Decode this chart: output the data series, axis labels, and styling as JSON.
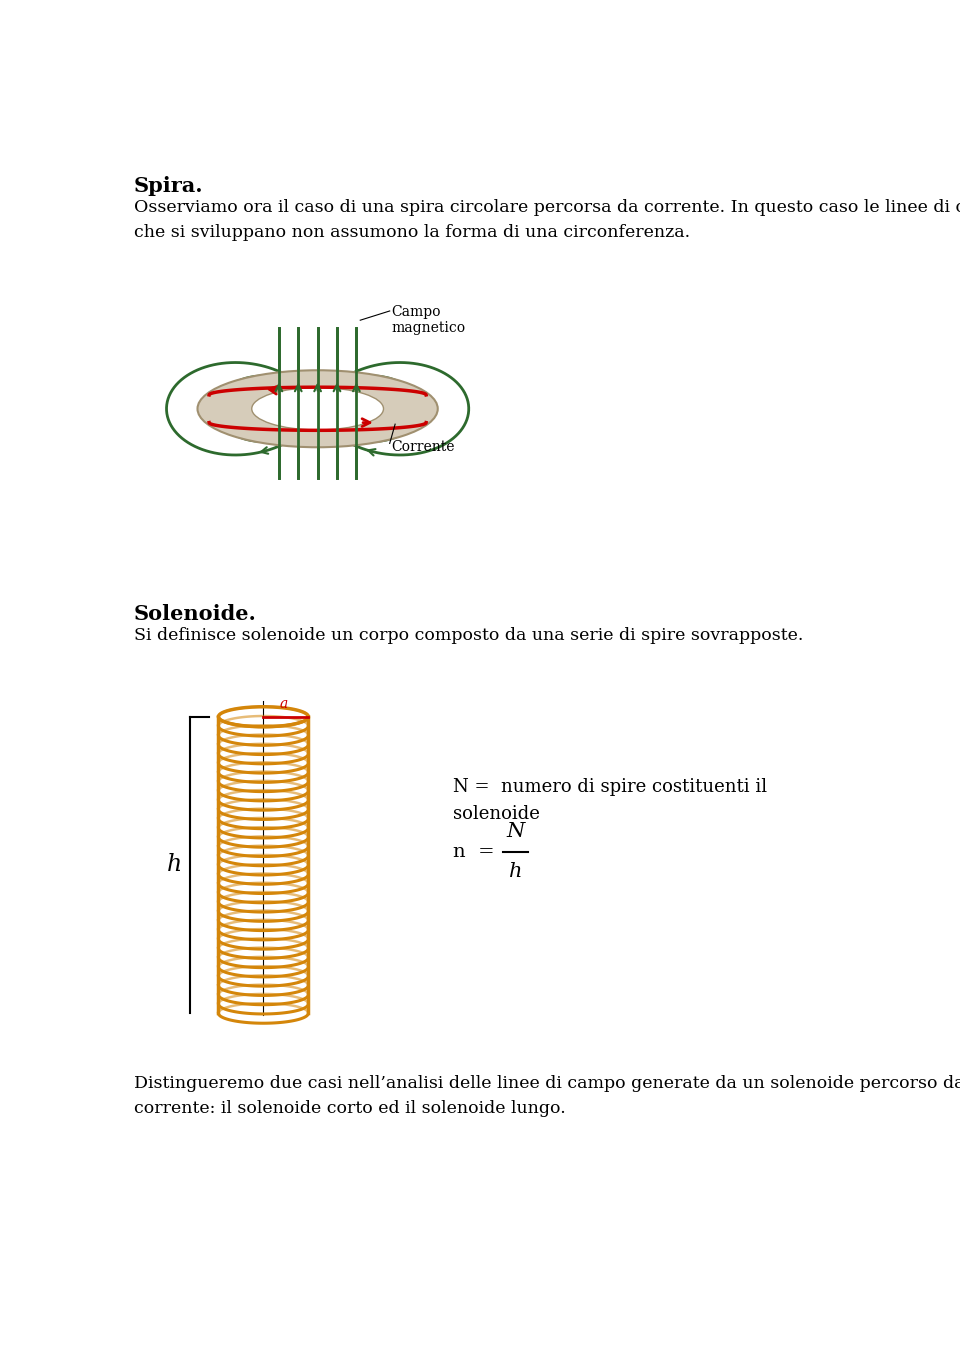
{
  "title1": "Spira.",
  "para1": "Osserviamo ora il caso di una spira circolare percorsa da corrente. In questo caso le linee di campo\nche si sviluppano non assumono la forma di una circonferenza.",
  "title2": "Solenoide.",
  "para2": "Si definisce solenoide un corpo composto da una serie di spire sovrapposte.",
  "para3": "Distingueremo due casi nell’analisi delle linee di campo generate da un solenoide percorso da\ncorrente: il solenoide corto ed il solenoide lungo.",
  "label_campo": "Campo\nmagnetico",
  "label_corrente": "Corrente",
  "label_N": "N =  numero di spire costituenti il\nsolenoide",
  "label_h_left": "h",
  "label_a_top": "a",
  "coil_color": "#D4860A",
  "field_line_color": "#2D6A2D",
  "background_color": "#FFFFFF",
  "text_color": "#000000",
  "red_color": "#CC0000",
  "ring_face_color": "#D6CCBA",
  "ring_edge_color": "#A09070"
}
